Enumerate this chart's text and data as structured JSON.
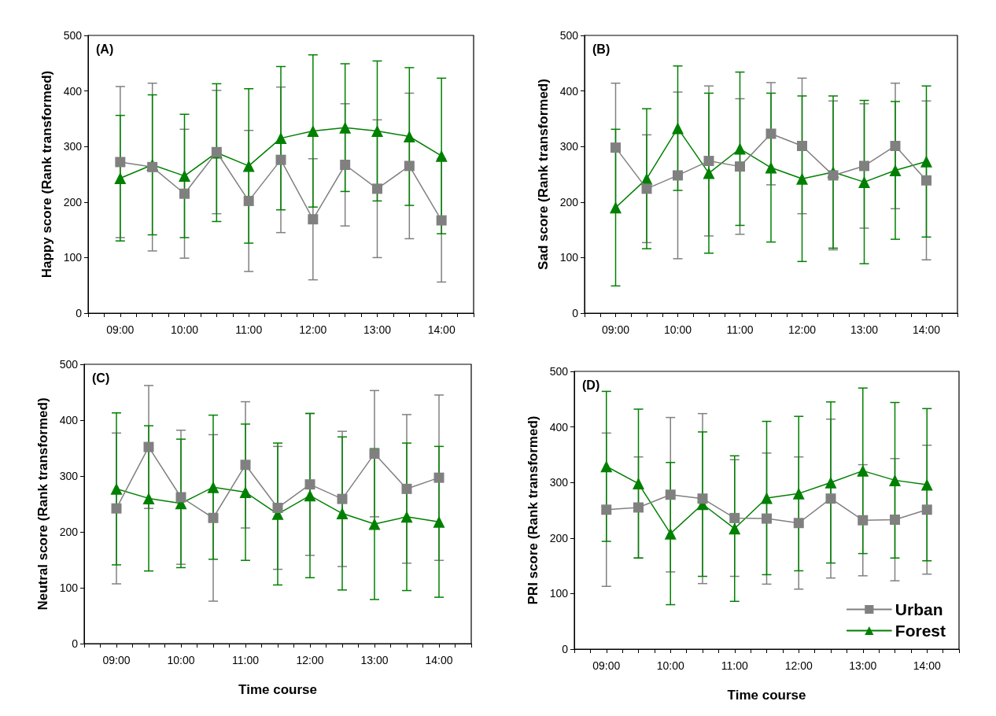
{
  "chart_data": [
    {
      "type": "line",
      "title": "(A)",
      "ylabel": "Happy score (Rank transformed)",
      "x": [
        9,
        9.5,
        10,
        10.5,
        11,
        11.5,
        12,
        12.5,
        13,
        13.5,
        14
      ],
      "xlim": [
        8.5,
        14.5
      ],
      "xticks": [
        {
          "value": 8.5,
          "label": null
        },
        {
          "value": 8.75,
          "label": null
        },
        {
          "value": 9,
          "label": "09:00"
        },
        {
          "value": 9.25,
          "label": null
        },
        {
          "value": 9.5,
          "label": null
        },
        {
          "value": 9.75,
          "label": null
        },
        {
          "value": 10,
          "label": "10:00"
        },
        {
          "value": 10.25,
          "label": null
        },
        {
          "value": 10.5,
          "label": null
        },
        {
          "value": 10.75,
          "label": null
        },
        {
          "value": 11,
          "label": "11:00"
        },
        {
          "value": 11.25,
          "label": null
        },
        {
          "value": 11.5,
          "label": null
        },
        {
          "value": 11.75,
          "label": null
        },
        {
          "value": 12,
          "label": "12:00"
        },
        {
          "value": 12.25,
          "label": null
        },
        {
          "value": 12.5,
          "label": null
        },
        {
          "value": 12.75,
          "label": null
        },
        {
          "value": 13,
          "label": "13:00"
        },
        {
          "value": 13.25,
          "label": null
        },
        {
          "value": 13.5,
          "label": null
        },
        {
          "value": 13.75,
          "label": null
        },
        {
          "value": 14,
          "label": "14:00"
        },
        {
          "value": 14.25,
          "label": null
        },
        {
          "value": 14.5,
          "label": null
        }
      ],
      "ylim": [
        0,
        500
      ],
      "yticks": [
        0,
        100,
        200,
        300,
        400,
        500
      ],
      "legend": false,
      "series": [
        {
          "color": "#808080",
          "marker": "square",
          "values": [
            272,
            263,
            215,
            290,
            202,
            276,
            169,
            267,
            224,
            265,
            167
          ],
          "errors": [
            136,
            151,
            116,
            111,
            127,
            131,
            109,
            110,
            124,
            131,
            111
          ]
        },
        {
          "color": "#008000",
          "marker": "triangle",
          "values": [
            243,
            267,
            247,
            289,
            265,
            315,
            328,
            334,
            328,
            318,
            283
          ],
          "errors": [
            113,
            126,
            111,
            124,
            139,
            129,
            137,
            115,
            126,
            124,
            140
          ]
        }
      ]
    },
    {
      "type": "line",
      "title": "(B)",
      "ylabel": "Sad score (Rank transformed)",
      "x": [
        9,
        9.5,
        10,
        10.5,
        11,
        11.5,
        12,
        12.5,
        13,
        13.5,
        14
      ],
      "xlim": [
        8.5,
        14.5
      ],
      "xticks": [
        {
          "value": 8.5,
          "label": null
        },
        {
          "value": 8.75,
          "label": null
        },
        {
          "value": 9,
          "label": "09:00"
        },
        {
          "value": 9.25,
          "label": null
        },
        {
          "value": 9.5,
          "label": null
        },
        {
          "value": 9.75,
          "label": null
        },
        {
          "value": 10,
          "label": "10:00"
        },
        {
          "value": 10.25,
          "label": null
        },
        {
          "value": 10.5,
          "label": null
        },
        {
          "value": 10.75,
          "label": null
        },
        {
          "value": 11,
          "label": "11:00"
        },
        {
          "value": 11.25,
          "label": null
        },
        {
          "value": 11.5,
          "label": null
        },
        {
          "value": 11.75,
          "label": null
        },
        {
          "value": 12,
          "label": "12:00"
        },
        {
          "value": 12.25,
          "label": null
        },
        {
          "value": 12.5,
          "label": null
        },
        {
          "value": 12.75,
          "label": null
        },
        {
          "value": 13,
          "label": "13:00"
        },
        {
          "value": 13.25,
          "label": null
        },
        {
          "value": 13.5,
          "label": null
        },
        {
          "value": 13.75,
          "label": null
        },
        {
          "value": 14,
          "label": "14:00"
        },
        {
          "value": 14.25,
          "label": null
        },
        {
          "value": 14.5,
          "label": null
        }
      ],
      "ylim": [
        0,
        500
      ],
      "yticks": [
        0,
        100,
        200,
        300,
        400,
        500
      ],
      "legend": false,
      "series": [
        {
          "color": "#808080",
          "marker": "square",
          "values": [
            298,
            224,
            248,
            274,
            264,
            323,
            301,
            248,
            265,
            301,
            239
          ],
          "errors": [
            116,
            97,
            150,
            135,
            122,
            92,
            122,
            134,
            112,
            113,
            143
          ]
        },
        {
          "color": "#008000",
          "marker": "triangle",
          "values": [
            190,
            242,
            333,
            252,
            296,
            262,
            242,
            254,
            236,
            257,
            273
          ],
          "errors": [
            141,
            126,
            112,
            144,
            138,
            134,
            149,
            137,
            147,
            124,
            136
          ]
        }
      ]
    },
    {
      "type": "line",
      "title": "(C)",
      "xlabel": "Time course",
      "ylabel": "Neutral score (Rank transformed)",
      "x": [
        9,
        9.5,
        10,
        10.5,
        11,
        11.5,
        12,
        12.5,
        13,
        13.5,
        14
      ],
      "xlim": [
        8.5,
        14.5
      ],
      "xticks": [
        {
          "value": 8.5,
          "label": null
        },
        {
          "value": 8.75,
          "label": null
        },
        {
          "value": 9,
          "label": "09:00"
        },
        {
          "value": 9.25,
          "label": null
        },
        {
          "value": 9.5,
          "label": null
        },
        {
          "value": 9.75,
          "label": null
        },
        {
          "value": 10,
          "label": "10:00"
        },
        {
          "value": 10.25,
          "label": null
        },
        {
          "value": 10.5,
          "label": null
        },
        {
          "value": 10.75,
          "label": null
        },
        {
          "value": 11,
          "label": "11:00"
        },
        {
          "value": 11.25,
          "label": null
        },
        {
          "value": 11.5,
          "label": null
        },
        {
          "value": 11.75,
          "label": null
        },
        {
          "value": 12,
          "label": "12:00"
        },
        {
          "value": 12.25,
          "label": null
        },
        {
          "value": 12.5,
          "label": null
        },
        {
          "value": 12.75,
          "label": null
        },
        {
          "value": 13,
          "label": "13:00"
        },
        {
          "value": 13.25,
          "label": null
        },
        {
          "value": 13.5,
          "label": null
        },
        {
          "value": 13.75,
          "label": null
        },
        {
          "value": 14,
          "label": "14:00"
        },
        {
          "value": 14.25,
          "label": null
        },
        {
          "value": 14.5,
          "label": null
        }
      ],
      "ylim": [
        0,
        500
      ],
      "yticks": [
        0,
        100,
        200,
        300,
        400,
        500
      ],
      "legend": false,
      "series": [
        {
          "color": "#808080",
          "marker": "square",
          "values": [
            242,
            352,
            262,
            225,
            320,
            243,
            285,
            259,
            340,
            277,
            297
          ],
          "errors": [
            135,
            110,
            120,
            149,
            113,
            110,
            127,
            121,
            113,
            133,
            148
          ]
        },
        {
          "color": "#008000",
          "marker": "triangle",
          "values": [
            277,
            260,
            251,
            280,
            271,
            232,
            265,
            233,
            214,
            227,
            218
          ],
          "errors": [
            136,
            130,
            115,
            129,
            122,
            127,
            147,
            137,
            135,
            132,
            135
          ]
        }
      ]
    },
    {
      "type": "line",
      "title": "(D)",
      "xlabel": "Time course",
      "ylabel": "PRI score (Rank transformed)",
      "x": [
        9,
        9.5,
        10,
        10.5,
        11,
        11.5,
        12,
        12.5,
        13,
        13.5,
        14
      ],
      "xlim": [
        8.5,
        14.5
      ],
      "xticks": [
        {
          "value": 8.5,
          "label": null
        },
        {
          "value": 8.75,
          "label": null
        },
        {
          "value": 9,
          "label": "09:00"
        },
        {
          "value": 9.25,
          "label": null
        },
        {
          "value": 9.5,
          "label": null
        },
        {
          "value": 9.75,
          "label": null
        },
        {
          "value": 10,
          "label": "10:00"
        },
        {
          "value": 10.25,
          "label": null
        },
        {
          "value": 10.5,
          "label": null
        },
        {
          "value": 10.75,
          "label": null
        },
        {
          "value": 11,
          "label": "11:00"
        },
        {
          "value": 11.25,
          "label": null
        },
        {
          "value": 11.5,
          "label": null
        },
        {
          "value": 11.75,
          "label": null
        },
        {
          "value": 12,
          "label": "12:00"
        },
        {
          "value": 12.25,
          "label": null
        },
        {
          "value": 12.5,
          "label": null
        },
        {
          "value": 12.75,
          "label": null
        },
        {
          "value": 13,
          "label": "13:00"
        },
        {
          "value": 13.25,
          "label": null
        },
        {
          "value": 13.5,
          "label": null
        },
        {
          "value": 13.75,
          "label": null
        },
        {
          "value": 14,
          "label": "14:00"
        },
        {
          "value": 14.25,
          "label": null
        },
        {
          "value": 14.5,
          "label": null
        }
      ],
      "ylim": [
        0,
        500
      ],
      "yticks": [
        0,
        100,
        200,
        300,
        400,
        500
      ],
      "legend": "bottom right",
      "series": [
        {
          "name": "Urban",
          "color": "#808080",
          "marker": "square",
          "values": [
            251,
            255,
            278,
            271,
            236,
            235,
            227,
            271,
            232,
            233,
            251
          ],
          "errors": [
            138,
            91,
            139,
            153,
            105,
            118,
            119,
            143,
            100,
            110,
            116
          ]
        },
        {
          "name": "Forest",
          "color": "#008000",
          "marker": "triangle",
          "values": [
            329,
            298,
            208,
            261,
            217,
            272,
            280,
            300,
            321,
            304,
            296
          ],
          "errors": [
            135,
            134,
            128,
            130,
            131,
            138,
            139,
            145,
            149,
            140,
            137
          ]
        }
      ]
    }
  ]
}
